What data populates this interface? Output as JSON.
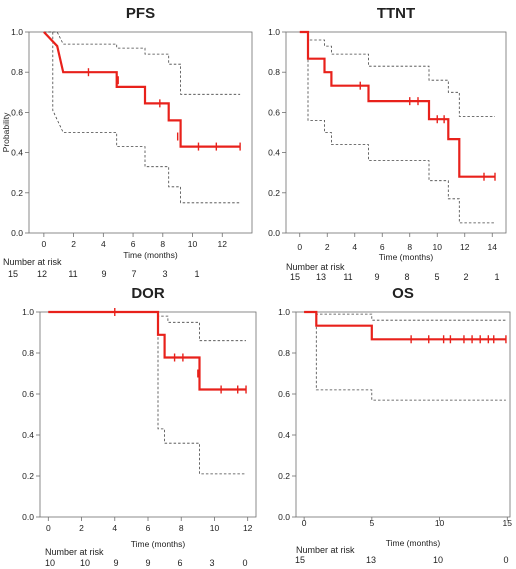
{
  "chart_data": [
    {
      "type": "kaplan-meier",
      "title": "PFS",
      "xlabel": "Time (months)",
      "ylabel": "Probability",
      "xlim": [
        -1,
        14
      ],
      "ylim": [
        0,
        1.0
      ],
      "xticks": [
        0,
        2,
        4,
        6,
        8,
        10,
        12
      ],
      "yticks": [
        "0.0",
        "0.2",
        "0.4",
        "0.6",
        "0.8",
        "1.0"
      ],
      "risk_label": "Number at risk",
      "risk_counts": [
        "15",
        "12",
        "11",
        "9",
        "7",
        "3",
        "1"
      ],
      "estimate": [
        [
          0,
          1.0
        ],
        [
          0.9,
          0.93
        ],
        [
          1.3,
          0.8
        ],
        [
          4.9,
          0.8
        ],
        [
          4.9,
          0.727
        ],
        [
          6.8,
          0.727
        ],
        [
          6.8,
          0.645
        ],
        [
          8.4,
          0.645
        ],
        [
          8.4,
          0.56
        ],
        [
          9.2,
          0.56
        ],
        [
          9.2,
          0.43
        ],
        [
          13.2,
          0.43
        ]
      ],
      "censor_marks": [
        [
          3.0,
          0.8
        ],
        [
          5.0,
          0.76
        ],
        [
          7.8,
          0.645
        ],
        [
          9.0,
          0.48
        ],
        [
          10.4,
          0.43
        ],
        [
          11.6,
          0.43
        ],
        [
          13.2,
          0.43
        ]
      ],
      "ci_upper": [
        [
          0,
          1.0
        ],
        [
          0.9,
          1.0
        ],
        [
          1.3,
          0.94
        ],
        [
          4.9,
          0.94
        ],
        [
          4.9,
          0.92
        ],
        [
          6.8,
          0.92
        ],
        [
          6.8,
          0.89
        ],
        [
          8.4,
          0.89
        ],
        [
          8.4,
          0.84
        ],
        [
          9.2,
          0.84
        ],
        [
          9.2,
          0.69
        ],
        [
          13.2,
          0.69
        ]
      ],
      "ci_lower": [
        [
          0,
          1.0
        ],
        [
          0.6,
          1.0
        ],
        [
          0.6,
          0.61
        ],
        [
          1.3,
          0.5
        ],
        [
          4.9,
          0.5
        ],
        [
          4.9,
          0.43
        ],
        [
          6.8,
          0.43
        ],
        [
          6.8,
          0.33
        ],
        [
          8.4,
          0.33
        ],
        [
          8.4,
          0.23
        ],
        [
          9.2,
          0.23
        ],
        [
          9.2,
          0.15
        ],
        [
          13.2,
          0.15
        ]
      ]
    },
    {
      "type": "kaplan-meier",
      "title": "TTNT",
      "xlabel": "Time (months)",
      "ylabel": "",
      "xlim": [
        -1,
        15
      ],
      "ylim": [
        0,
        1.0
      ],
      "xticks": [
        0,
        2,
        4,
        6,
        8,
        10,
        12,
        14
      ],
      "yticks": [
        "0.0",
        "0.2",
        "0.4",
        "0.6",
        "0.8",
        "1.0"
      ],
      "risk_label": "Number at risk",
      "risk_counts": [
        "15",
        "13",
        "11",
        "9",
        "8",
        "5",
        "2",
        "1"
      ],
      "estimate": [
        [
          0,
          1.0
        ],
        [
          0.6,
          1.0
        ],
        [
          0.6,
          0.867
        ],
        [
          1.8,
          0.867
        ],
        [
          1.8,
          0.8
        ],
        [
          2.3,
          0.8
        ],
        [
          2.3,
          0.733
        ],
        [
          5.0,
          0.733
        ],
        [
          5.0,
          0.656
        ],
        [
          9.4,
          0.656
        ],
        [
          9.4,
          0.566
        ],
        [
          10.8,
          0.566
        ],
        [
          10.8,
          0.467
        ],
        [
          11.6,
          0.467
        ],
        [
          11.6,
          0.28
        ],
        [
          14.2,
          0.28
        ]
      ],
      "censor_marks": [
        [
          4.4,
          0.733
        ],
        [
          8.0,
          0.656
        ],
        [
          8.6,
          0.656
        ],
        [
          10.0,
          0.566
        ],
        [
          10.5,
          0.566
        ],
        [
          13.4,
          0.28
        ],
        [
          14.2,
          0.28
        ]
      ],
      "ci_upper": [
        [
          0,
          1.0
        ],
        [
          0.6,
          1.0
        ],
        [
          0.6,
          0.96
        ],
        [
          1.8,
          0.96
        ],
        [
          1.8,
          0.93
        ],
        [
          2.3,
          0.93
        ],
        [
          2.3,
          0.89
        ],
        [
          5.0,
          0.89
        ],
        [
          5.0,
          0.83
        ],
        [
          9.4,
          0.83
        ],
        [
          9.4,
          0.76
        ],
        [
          10.8,
          0.76
        ],
        [
          10.8,
          0.7
        ],
        [
          11.6,
          0.7
        ],
        [
          11.6,
          0.58
        ],
        [
          14.2,
          0.58
        ]
      ],
      "ci_lower": [
        [
          0,
          1.0
        ],
        [
          0.6,
          1.0
        ],
        [
          0.6,
          0.56
        ],
        [
          1.8,
          0.56
        ],
        [
          1.8,
          0.5
        ],
        [
          2.3,
          0.5
        ],
        [
          2.3,
          0.44
        ],
        [
          5.0,
          0.44
        ],
        [
          5.0,
          0.36
        ],
        [
          9.4,
          0.36
        ],
        [
          9.4,
          0.26
        ],
        [
          10.8,
          0.26
        ],
        [
          10.8,
          0.17
        ],
        [
          11.6,
          0.17
        ],
        [
          11.6,
          0.05
        ],
        [
          14.2,
          0.05
        ]
      ]
    },
    {
      "type": "kaplan-meier",
      "title": "DOR",
      "xlabel": "Time (months)",
      "ylabel": "",
      "xlim": [
        -0.5,
        12.5
      ],
      "ylim": [
        0,
        1.0
      ],
      "xticks": [
        0,
        2,
        4,
        6,
        8,
        10,
        12
      ],
      "yticks": [
        "0.0",
        "0.2",
        "0.4",
        "0.6",
        "0.8",
        "1.0"
      ],
      "risk_label": "Number at risk",
      "risk_counts": [
        "10",
        "10",
        "9",
        "9",
        "6",
        "3",
        "0"
      ],
      "estimate": [
        [
          0,
          1.0
        ],
        [
          6.6,
          1.0
        ],
        [
          6.6,
          0.889
        ],
        [
          7.0,
          0.889
        ],
        [
          7.0,
          0.778
        ],
        [
          9.1,
          0.778
        ],
        [
          9.1,
          0.622
        ],
        [
          11.9,
          0.622
        ]
      ],
      "censor_marks": [
        [
          4.0,
          1.0
        ],
        [
          7.6,
          0.778
        ],
        [
          8.1,
          0.778
        ],
        [
          9.0,
          0.7
        ],
        [
          10.4,
          0.622
        ],
        [
          11.4,
          0.622
        ],
        [
          11.9,
          0.622
        ]
      ],
      "ci_upper": [
        [
          0,
          1.0
        ],
        [
          6.6,
          1.0
        ],
        [
          6.6,
          0.98
        ],
        [
          7.2,
          0.98
        ],
        [
          7.2,
          0.95
        ],
        [
          9.1,
          0.95
        ],
        [
          9.1,
          0.86
        ],
        [
          11.9,
          0.86
        ]
      ],
      "ci_lower": [
        [
          0,
          1.0
        ],
        [
          6.6,
          1.0
        ],
        [
          6.6,
          0.43
        ],
        [
          7.0,
          0.43
        ],
        [
          7.0,
          0.36
        ],
        [
          9.1,
          0.36
        ],
        [
          9.1,
          0.21
        ],
        [
          11.9,
          0.21
        ]
      ]
    },
    {
      "type": "kaplan-meier",
      "title": "OS",
      "xlabel": "Time (months)",
      "ylabel": "",
      "xlim": [
        -0.6,
        15.2
      ],
      "ylim": [
        0,
        1.0
      ],
      "xticks": [
        0,
        5,
        10,
        15
      ],
      "yticks": [
        "0.0",
        "0.2",
        "0.4",
        "0.6",
        "0.8",
        "1.0"
      ],
      "risk_label": "Number at risk",
      "risk_counts": [
        "15",
        "13",
        "10",
        "0"
      ],
      "estimate": [
        [
          0,
          1.0
        ],
        [
          0.9,
          1.0
        ],
        [
          0.9,
          0.933
        ],
        [
          5.0,
          0.933
        ],
        [
          5.0,
          0.867
        ],
        [
          14.9,
          0.867
        ]
      ],
      "censor_marks": [
        [
          7.9,
          0.867
        ],
        [
          9.2,
          0.867
        ],
        [
          10.3,
          0.867
        ],
        [
          10.8,
          0.867
        ],
        [
          11.8,
          0.867
        ],
        [
          12.4,
          0.867
        ],
        [
          13.0,
          0.867
        ],
        [
          13.6,
          0.867
        ],
        [
          14.0,
          0.867
        ],
        [
          14.9,
          0.867
        ]
      ],
      "ci_upper": [
        [
          0,
          1.0
        ],
        [
          0.9,
          1.0
        ],
        [
          0.9,
          0.99
        ],
        [
          5.0,
          0.99
        ],
        [
          5.0,
          0.96
        ],
        [
          14.9,
          0.96
        ]
      ],
      "ci_lower": [
        [
          0,
          1.0
        ],
        [
          0.9,
          1.0
        ],
        [
          0.9,
          0.62
        ],
        [
          5.0,
          0.62
        ],
        [
          5.0,
          0.57
        ],
        [
          14.9,
          0.57
        ]
      ]
    }
  ]
}
